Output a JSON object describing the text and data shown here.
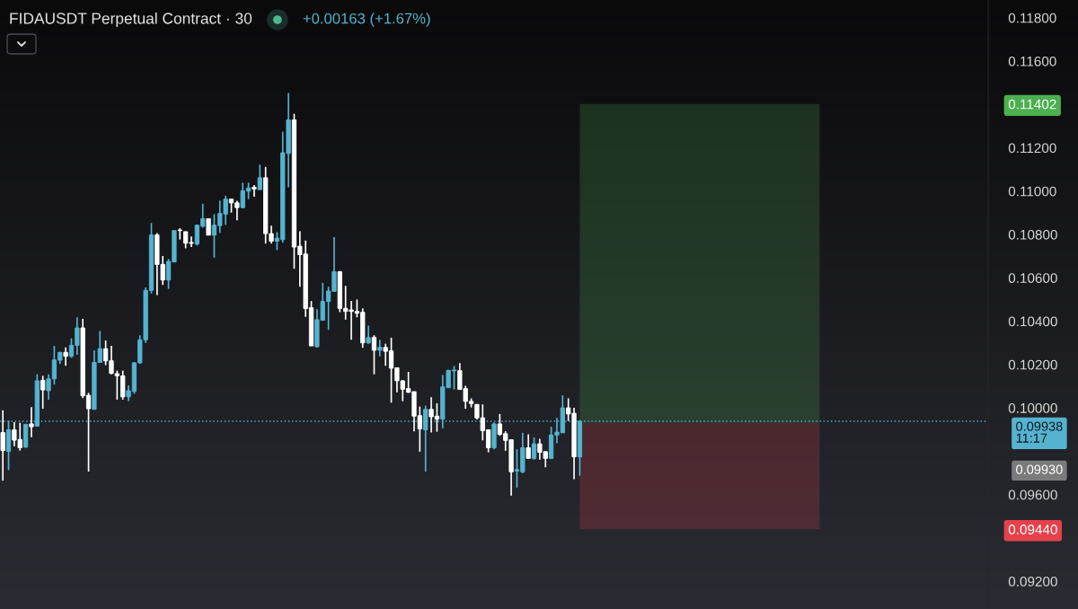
{
  "chart_data": {
    "type": "candlestick",
    "title": "FIDAUSDT Perpetual Contract · 30",
    "subtitle": "+0.00163 (+1.67%)",
    "categories": [
      null,
      null,
      null,
      null,
      null,
      null,
      null,
      null,
      null,
      null,
      null,
      null,
      null,
      null,
      null,
      null,
      null,
      null,
      null,
      null,
      null,
      null,
      null,
      null,
      null,
      null,
      null,
      null,
      null,
      null,
      null,
      null,
      null,
      null,
      null,
      null,
      null,
      null,
      null,
      null,
      null,
      null,
      null,
      null,
      null,
      null,
      null,
      null,
      null,
      null,
      null,
      null,
      null,
      null,
      null,
      null,
      null,
      null,
      null,
      null,
      null,
      null,
      null,
      null,
      null,
      null,
      null,
      null,
      null,
      null,
      null,
      null,
      null,
      null,
      null,
      null,
      null,
      null,
      null,
      null,
      null,
      null,
      null,
      null,
      null,
      null,
      null,
      null,
      null,
      null,
      null,
      null,
      null,
      null,
      null,
      null,
      null,
      null,
      null,
      null,
      null,
      null,
      null,
      null,
      null,
      null,
      null,
      null,
      null,
      null,
      null,
      null,
      null,
      null,
      null,
      null,
      null,
      null,
      null,
      null,
      null,
      null,
      null,
      null,
      null,
      null,
      null,
      null,
      null,
      null,
      null,
      null,
      null,
      null,
      null,
      null,
      null,
      null,
      null,
      null,
      null,
      null,
      null,
      null,
      null,
      null,
      null,
      null,
      null,
      null,
      null,
      null,
      null,
      null,
      null,
      null,
      null,
      null,
      null,
      null,
      null,
      null,
      null,
      null,
      null,
      null,
      null,
      null,
      null,
      null,
      null,
      null,
      null
    ],
    "ohlc": [
      [
        0.09886,
        0.09989,
        0.09664,
        0.09803
      ],
      [
        0.09799,
        0.09941,
        0.09713,
        0.09899
      ],
      [
        0.09899,
        0.09934,
        0.09823,
        0.09851
      ],
      [
        0.09854,
        0.09931,
        0.09803,
        0.09816
      ],
      [
        0.09819,
        0.09927,
        0.09816,
        0.09923
      ],
      [
        0.09926,
        0.10003,
        0.09865,
        0.09913
      ],
      [
        0.09916,
        0.10155,
        0.09913,
        0.10125
      ],
      [
        0.10127,
        0.10148,
        0.09996,
        0.10083
      ],
      [
        0.10079,
        0.10155,
        0.10038,
        0.10134
      ],
      [
        0.10134,
        0.10286,
        0.10107,
        0.10221
      ],
      [
        0.1022,
        0.10259,
        0.10203,
        0.10256
      ],
      [
        0.10256,
        0.10279,
        0.10194,
        0.10238
      ],
      [
        0.10238,
        0.10321,
        0.10231,
        0.10289
      ],
      [
        0.10289,
        0.10418,
        0.10245,
        0.10369
      ],
      [
        0.10369,
        0.10411,
        0.10045,
        0.10056
      ],
      [
        0.10058,
        0.10069,
        0.09706,
        0.09996
      ],
      [
        0.09993,
        0.10266,
        0.09993,
        0.1021
      ],
      [
        0.1021,
        0.10355,
        0.1021,
        0.10273
      ],
      [
        0.10273,
        0.10311,
        0.10197,
        0.10217
      ],
      [
        0.10217,
        0.10286,
        0.10155,
        0.10159
      ],
      [
        0.10158,
        0.10172,
        0.10038,
        0.10148
      ],
      [
        0.10148,
        0.10172,
        0.10038,
        0.10051
      ],
      [
        0.10051,
        0.10104,
        0.10031,
        0.10079
      ],
      [
        0.10076,
        0.1021,
        0.10065,
        0.10208
      ],
      [
        0.10208,
        0.10335,
        0.10203,
        0.10314
      ],
      [
        0.10314,
        0.10556,
        0.103,
        0.10542
      ],
      [
        0.10542,
        0.10853,
        0.10528,
        0.10798
      ],
      [
        0.10798,
        0.10807,
        0.10521,
        0.10662
      ],
      [
        0.10662,
        0.10701,
        0.10567,
        0.1059
      ],
      [
        0.1059,
        0.10687,
        0.10549,
        0.10676
      ],
      [
        0.10673,
        0.10818,
        0.10673,
        0.10818
      ],
      [
        0.10821,
        0.10829,
        0.10777,
        0.10818
      ],
      [
        0.10813,
        0.10813,
        0.10736,
        0.1076
      ],
      [
        0.10763,
        0.10791,
        0.10742,
        0.10759
      ],
      [
        0.10756,
        0.10846,
        0.10749,
        0.10843
      ],
      [
        0.10838,
        0.10942,
        0.10832,
        0.10873
      ],
      [
        0.10873,
        0.10873,
        0.10797,
        0.10797
      ],
      [
        0.10797,
        0.10894,
        0.10693,
        0.10843
      ],
      [
        0.10841,
        0.10956,
        0.10807,
        0.10897
      ],
      [
        0.10894,
        0.10979,
        0.10845,
        0.10963
      ],
      [
        0.10963,
        0.10963,
        0.10901,
        0.10946
      ],
      [
        0.10946,
        0.10956,
        0.10866,
        0.10924
      ],
      [
        0.10924,
        0.11039,
        0.10921,
        0.11002
      ],
      [
        0.11,
        0.11039,
        0.10963,
        0.11015
      ],
      [
        0.11018,
        0.11028,
        0.10974,
        0.1101
      ],
      [
        0.11007,
        0.11122,
        0.11007,
        0.11062
      ],
      [
        0.11062,
        0.11112,
        0.10758,
        0.10804
      ],
      [
        0.10804,
        0.10841,
        0.10758,
        0.10769
      ],
      [
        0.10769,
        0.10811,
        0.10728,
        0.10783
      ],
      [
        0.10776,
        0.11274,
        0.10762,
        0.11177
      ],
      [
        0.11174,
        0.11453,
        0.11018,
        0.11329
      ],
      [
        0.11329,
        0.11357,
        0.10642,
        0.10742
      ],
      [
        0.10746,
        0.10815,
        0.10559,
        0.10707
      ],
      [
        0.1071,
        0.10772,
        0.1042,
        0.10458
      ],
      [
        0.10462,
        0.10493,
        0.10286,
        0.10286
      ],
      [
        0.10282,
        0.10455,
        0.10279,
        0.10407
      ],
      [
        0.10404,
        0.10577,
        0.10404,
        0.10491
      ],
      [
        0.10491,
        0.10559,
        0.1036,
        0.10539
      ],
      [
        0.10538,
        0.10788,
        0.10535,
        0.10628
      ],
      [
        0.10628,
        0.10632,
        0.10442,
        0.10459
      ],
      [
        0.10459,
        0.10563,
        0.10407,
        0.10445
      ],
      [
        0.10452,
        0.10494,
        0.10314,
        0.10445
      ],
      [
        0.10445,
        0.105,
        0.10418,
        0.10437
      ],
      [
        0.10441,
        0.10459,
        0.10277,
        0.103
      ],
      [
        0.103,
        0.1038,
        0.10296,
        0.10324
      ],
      [
        0.10325,
        0.10335,
        0.10155,
        0.10266
      ],
      [
        0.10266,
        0.10314,
        0.10238,
        0.10279
      ],
      [
        0.10279,
        0.10296,
        0.10194,
        0.10261
      ],
      [
        0.10263,
        0.10324,
        0.10024,
        0.10183
      ],
      [
        0.10185,
        0.10185,
        0.10072,
        0.10125
      ],
      [
        0.10125,
        0.10127,
        0.10031,
        0.10086
      ],
      [
        0.10089,
        0.10166,
        0.10069,
        0.10072
      ],
      [
        0.10075,
        0.10075,
        0.09892,
        0.09962
      ],
      [
        0.09964,
        0.10006,
        0.09798,
        0.09903
      ],
      [
        0.09899,
        0.1001,
        0.09706,
        0.09993
      ],
      [
        0.09993,
        0.10049,
        0.09886,
        0.09959
      ],
      [
        0.09962,
        0.10021,
        0.0989,
        0.09948
      ],
      [
        0.09948,
        0.10152,
        0.09906,
        0.10097
      ],
      [
        0.10093,
        0.10176,
        0.10093,
        0.10173
      ],
      [
        0.10171,
        0.10193,
        0.10085,
        0.10175
      ],
      [
        0.10172,
        0.10207,
        0.10085,
        0.10085
      ],
      [
        0.10089,
        0.10102,
        0.09996,
        0.1003
      ],
      [
        0.1003,
        0.10044,
        0.10002,
        0.1002
      ],
      [
        0.10016,
        0.10016,
        0.09947,
        0.09954
      ],
      [
        0.09954,
        0.10016,
        0.0985,
        0.09895
      ],
      [
        0.09899,
        0.09899,
        0.09795,
        0.09816
      ],
      [
        0.09816,
        0.09933,
        0.09809,
        0.09926
      ],
      [
        0.09926,
        0.09972,
        0.09871,
        0.09878
      ],
      [
        0.09881,
        0.09892,
        0.09802,
        0.0985
      ],
      [
        0.09853,
        0.09853,
        0.09595,
        0.09705
      ],
      [
        0.09709,
        0.09809,
        0.09632,
        0.09715
      ],
      [
        0.09705,
        0.09885,
        0.09698,
        0.09816
      ],
      [
        0.09816,
        0.09878,
        0.09765,
        0.09767
      ],
      [
        0.09767,
        0.09864,
        0.09761,
        0.09834
      ],
      [
        0.09834,
        0.09857,
        0.09761,
        0.09795
      ],
      [
        0.09798,
        0.09798,
        0.09726,
        0.09767
      ],
      [
        0.09767,
        0.09913,
        0.09765,
        0.09875
      ],
      [
        0.09875,
        0.09954,
        0.09837,
        0.09888
      ],
      [
        0.09885,
        0.10058,
        0.09885,
        0.1
      ],
      [
        0.1,
        0.10044,
        0.0994,
        0.09972
      ],
      [
        0.09975,
        0.1,
        0.09671,
        0.09774
      ],
      [
        0.09774,
        0.09944,
        0.09687,
        0.09938
      ],
      null,
      null,
      null,
      null,
      null,
      null,
      null,
      null,
      null,
      null,
      null,
      null,
      null,
      null,
      null,
      null,
      null,
      null,
      null,
      null,
      null,
      null,
      null,
      null,
      null,
      null,
      null,
      null,
      null,
      null,
      null,
      null,
      null,
      null,
      null,
      null,
      null,
      null,
      null,
      null,
      null,
      null,
      null,
      null,
      null,
      null,
      null,
      null,
      null,
      null,
      null,
      null,
      null,
      null,
      null,
      null,
      null,
      null,
      null,
      null,
      null,
      null,
      null,
      null,
      null,
      null,
      null,
      null,
      null,
      null,
      null
    ],
    "colors": [
      "#ffffff",
      "#55b3cf",
      "#ffffff",
      "#ffffff",
      "#55b3cf",
      "#ffffff",
      "#55b3cf",
      "#ffffff",
      "#55b3cf",
      "#55b3cf",
      "#55b3cf",
      "#ffffff",
      "#55b3cf",
      "#55b3cf",
      "#ffffff",
      "#ffffff",
      "#55b3cf",
      "#55b3cf",
      "#ffffff",
      "#ffffff",
      "#ffffff",
      "#ffffff",
      "#55b3cf",
      "#55b3cf",
      "#55b3cf",
      "#55b3cf",
      "#55b3cf",
      "#ffffff",
      "#ffffff",
      "#55b3cf",
      "#55b3cf",
      "#ffffff",
      "#ffffff",
      "#ffffff",
      "#55b3cf",
      "#55b3cf",
      "#ffffff",
      "#55b3cf",
      "#55b3cf",
      "#55b3cf",
      "#ffffff",
      "#ffffff",
      "#55b3cf",
      "#55b3cf",
      "#ffffff",
      "#55b3cf",
      "#ffffff",
      "#ffffff",
      "#55b3cf",
      "#55b3cf",
      "#55b3cf",
      "#ffffff",
      "#ffffff",
      "#ffffff",
      "#ffffff",
      "#55b3cf",
      "#55b3cf",
      "#55b3cf",
      "#55b3cf",
      "#ffffff",
      "#ffffff",
      "#ffffff",
      "#ffffff",
      "#ffffff",
      "#55b3cf",
      "#ffffff",
      "#55b3cf",
      "#ffffff",
      "#ffffff",
      "#ffffff",
      "#ffffff",
      "#ffffff",
      "#ffffff",
      "#ffffff",
      "#55b3cf",
      "#ffffff",
      "#ffffff",
      "#55b3cf",
      "#55b3cf",
      "#55b3cf",
      "#ffffff",
      "#ffffff",
      "#ffffff",
      "#ffffff",
      "#ffffff",
      "#ffffff",
      "#55b3cf",
      "#ffffff",
      "#ffffff",
      "#ffffff",
      "#55b3cf",
      "#55b3cf",
      "#ffffff",
      "#55b3cf",
      "#ffffff",
      "#ffffff",
      "#55b3cf",
      "#55b3cf",
      "#55b3cf",
      "#ffffff",
      "#ffffff",
      "#55b3cf",
      null,
      null,
      null,
      null,
      null,
      null,
      null,
      null,
      null,
      null,
      null,
      null,
      null,
      null,
      null,
      null,
      null,
      null,
      null,
      null,
      null,
      null,
      null,
      null,
      null,
      null,
      null,
      null,
      null,
      null,
      null,
      null,
      null,
      null,
      null,
      null,
      null,
      null,
      null,
      null,
      null,
      null,
      null,
      null,
      null,
      null,
      null,
      null,
      null,
      null,
      null,
      null,
      null,
      null,
      null,
      null,
      null,
      null,
      null,
      null,
      null,
      null,
      null,
      null,
      null,
      null,
      null,
      null,
      null,
      null,
      null
    ],
    "ylim": [
      0.09072,
      0.11882
    ],
    "yticks": [
      {
        "value": 0.092,
        "label": "0.09200"
      },
      {
        "value": 0.0944,
        "label": "0.09440"
      },
      {
        "value": 0.096,
        "label": "0.09600"
      },
      {
        "value": 0.1,
        "label": "0.10000"
      },
      {
        "value": 0.102,
        "label": "0.10200"
      },
      {
        "value": 0.104,
        "label": "0.10400"
      },
      {
        "value": 0.106,
        "label": "0.10600"
      },
      {
        "value": 0.108,
        "label": "0.10800"
      },
      {
        "value": 0.11,
        "label": "0.11000"
      },
      {
        "value": 0.112,
        "label": "0.11200"
      },
      {
        "value": 0.11402,
        "label": "0.11402"
      },
      {
        "value": 0.116,
        "label": "0.11600"
      },
      {
        "value": 0.118,
        "label": "0.11800"
      }
    ],
    "tick_labels": "y",
    "ref_lines": [
      {
        "axis": "y",
        "value": 0.09938,
        "label": "0.09938\n11:17",
        "color": "#55b3cf",
        "line_style": "dotted"
      }
    ],
    "bands": [
      {
        "axis": "y",
        "from": 0.0993,
        "to": 0.11402,
        "color": "#4caf50"
      },
      {
        "axis": "y",
        "from": 0.0993,
        "to": 0.0944,
        "color": "#e5414b"
      }
    ],
    "annotations": [
      "0.09930"
    ]
  }
}
